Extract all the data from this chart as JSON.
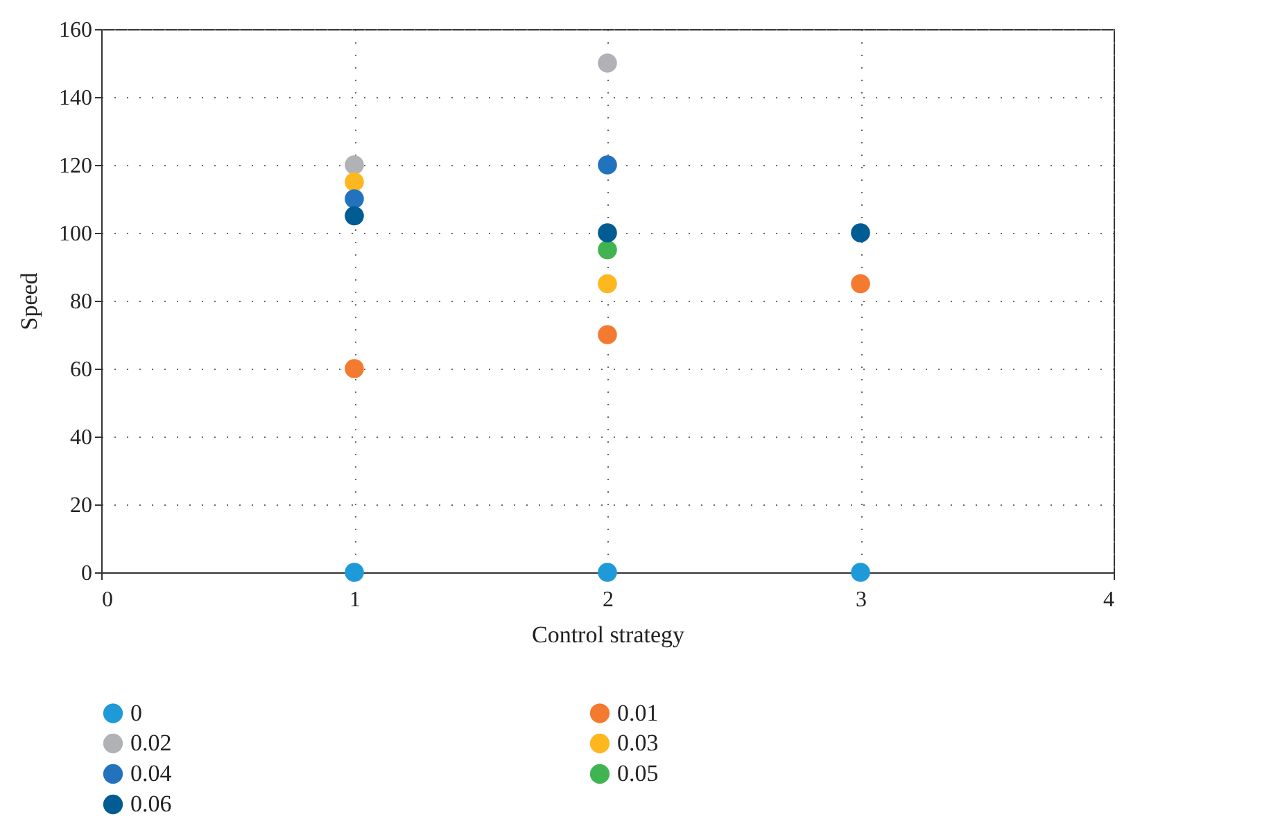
{
  "chart_data": {
    "type": "scatter",
    "xlabel": "Control strategy",
    "ylabel": "Speed",
    "xlim": [
      0,
      4
    ],
    "xticks": [
      0,
      1,
      2,
      3,
      4
    ],
    "ylim": [
      0,
      160
    ],
    "yticks": [
      0,
      20,
      40,
      60,
      80,
      100,
      120,
      140,
      160
    ],
    "grid": true,
    "legend": "bottom",
    "marker": "circle",
    "x": [
      1,
      2,
      3
    ],
    "series": [
      {
        "name": "0",
        "color": "#1f9ad8",
        "values": [
          0,
          0,
          0
        ]
      },
      {
        "name": "0.01",
        "color": "#f47a30",
        "values": [
          60,
          70,
          85
        ]
      },
      {
        "name": "0.02",
        "color": "#b1b2b5",
        "values": [
          120,
          150,
          null
        ]
      },
      {
        "name": "0.03",
        "color": "#fdb71f",
        "values": [
          115,
          85,
          null
        ]
      },
      {
        "name": "0.04",
        "color": "#2372bd",
        "values": [
          110,
          120,
          null
        ]
      },
      {
        "name": "0.05",
        "color": "#41b452",
        "values": [
          null,
          95,
          null
        ]
      },
      {
        "name": "0.06",
        "color": "#005c92",
        "values": [
          105,
          100,
          100
        ]
      }
    ]
  }
}
